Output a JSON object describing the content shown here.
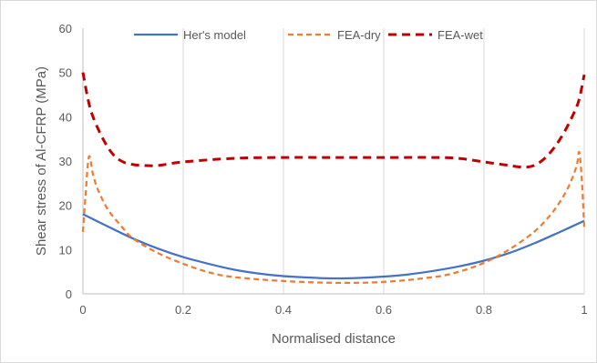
{
  "chart_data": {
    "type": "line",
    "xlabel": "Normalised distance",
    "ylabel": "Shear stress of Al-CFRP (MPa)",
    "xlim": [
      0,
      1
    ],
    "ylim": [
      0,
      60
    ],
    "xticks": [
      0,
      0.2,
      0.4,
      0.6,
      0.8,
      1
    ],
    "yticks": [
      0,
      10,
      20,
      30,
      40,
      50,
      60
    ],
    "xtick_labels": [
      "0",
      "0.2",
      "0.4",
      "0.6",
      "0.8",
      "1"
    ],
    "ytick_labels": [
      "0",
      "10",
      "20",
      "30",
      "40",
      "50",
      "60"
    ],
    "grid": {
      "x": true,
      "y": false
    },
    "legend_position": "top",
    "series": [
      {
        "name": "Her's model",
        "color": "#4472c4",
        "dash": "solid",
        "x": [
          0,
          0.05,
          0.1,
          0.15,
          0.2,
          0.25,
          0.3,
          0.35,
          0.4,
          0.45,
          0.5,
          0.55,
          0.6,
          0.65,
          0.7,
          0.75,
          0.8,
          0.85,
          0.9,
          0.95,
          1
        ],
        "y": [
          18,
          15.2,
          12.5,
          10.2,
          8.3,
          6.8,
          5.5,
          4.6,
          4.0,
          3.7,
          3.5,
          3.6,
          3.9,
          4.4,
          5.2,
          6.2,
          7.5,
          9.2,
          11.4,
          13.9,
          16.5
        ]
      },
      {
        "name": "FEA-dry",
        "color": "#ed7d31",
        "dash": "dash",
        "x": [
          0,
          0.005,
          0.012,
          0.02,
          0.03,
          0.05,
          0.075,
          0.1,
          0.15,
          0.2,
          0.25,
          0.3,
          0.4,
          0.5,
          0.6,
          0.7,
          0.75,
          0.8,
          0.85,
          0.9,
          0.93,
          0.95,
          0.97,
          0.985,
          0.99,
          0.995,
          1
        ],
        "y": [
          14,
          22,
          31,
          27,
          23.5,
          19,
          15.5,
          12.5,
          9.2,
          6.8,
          4.9,
          3.8,
          2.9,
          2.5,
          2.7,
          3.8,
          5.0,
          7.0,
          10.0,
          14.0,
          17.5,
          20.5,
          24.5,
          29,
          32,
          26,
          15
        ]
      },
      {
        "name": "FEA-wet",
        "color": "#c00000",
        "dash": "dash",
        "x": [
          0,
          0.01,
          0.02,
          0.04,
          0.06,
          0.08,
          0.1,
          0.12,
          0.15,
          0.2,
          0.3,
          0.4,
          0.5,
          0.6,
          0.7,
          0.75,
          0.8,
          0.85,
          0.88,
          0.9,
          0.92,
          0.94,
          0.96,
          0.98,
          0.99,
          1
        ],
        "y": [
          50,
          44,
          40,
          35,
          31.5,
          29.8,
          29.2,
          29,
          29,
          29.8,
          30.6,
          30.8,
          30.8,
          30.8,
          30.8,
          30.6,
          29.8,
          29,
          28.6,
          29,
          30.5,
          33,
          36.5,
          41,
          44,
          49.5
        ]
      }
    ]
  }
}
